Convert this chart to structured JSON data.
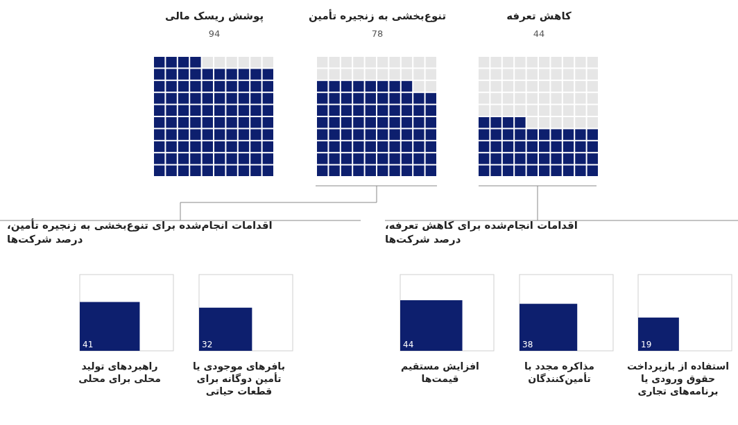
{
  "chart_data": [
    {
      "type": "other",
      "categories": [
        "پوشش ریسک مالی",
        "تنوع‌بخشی به زنجیره تأمین",
        "کاهش تعرفه"
      ],
      "values": [
        94,
        78,
        44
      ],
      "color": "#0d1f6e",
      "data_labels": true
    },
    {
      "type": "other",
      "title": "اقدامات انجام‌شده برای تنوع‌بخشی به زنجیره تأمین،",
      "subtitle": "درصد شرکت‌ها",
      "categories": [
        "راهبردهای تولید\nمحلی برای محلی",
        "بافرهای موجودی یا\nتأمین دوگانه برای\nقطعات حیاتی"
      ],
      "values": [
        41,
        32
      ],
      "color": "#0d1f6e",
      "data_labels": true
    },
    {
      "type": "other",
      "title": "اقدامات انجام‌شده برای کاهش تعرفه،",
      "subtitle": "درصد شرکت‌ها",
      "categories": [
        "افزایش مستقیم\nقیمت‌ها",
        "مذاکره مجدد با\nتأمین‌کنندگان",
        "استفاده از بازپرداخت\nحقوق ورودی یا\nبرنامه‌های تجاری"
      ],
      "values": [
        44,
        38,
        19
      ],
      "color": "#0d1f6e",
      "data_labels": true
    }
  ]
}
